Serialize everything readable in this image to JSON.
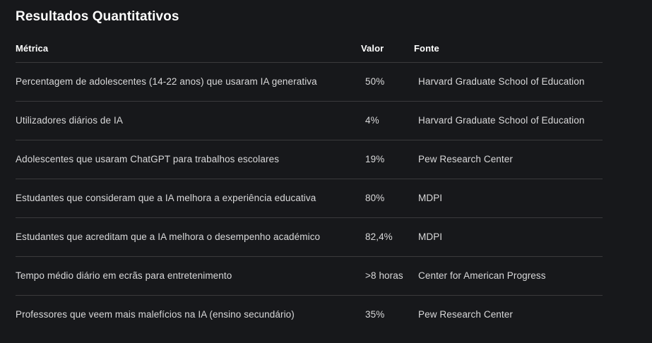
{
  "page": {
    "title": "Resultados Quantitativos"
  },
  "table": {
    "columns": [
      {
        "label": "Métrica"
      },
      {
        "label": "Valor"
      },
      {
        "label": "Fonte"
      }
    ],
    "rows": [
      {
        "metric": "Percentagem de adolescentes (14-22 anos) que usaram IA generativa",
        "value": "50%",
        "source": "Harvard Graduate School of Education"
      },
      {
        "metric": "Utilizadores diários de IA",
        "value": "4%",
        "source": "Harvard Graduate School of Education"
      },
      {
        "metric": "Adolescentes que usaram ChatGPT para trabalhos escolares",
        "value": "19%",
        "source": "Pew Research Center"
      },
      {
        "metric": "Estudantes que consideram que a IA melhora a experiência educativa",
        "value": "80%",
        "source": "MDPI"
      },
      {
        "metric": "Estudantes que acreditam que a IA melhora o desempenho académico",
        "value": "82,4%",
        "source": "MDPI"
      },
      {
        "metric": "Tempo médio diário em ecrãs para entretenimento",
        "value": ">8 horas",
        "source": "Center for American Progress"
      },
      {
        "metric": "Professores que veem mais malefícios na IA (ensino secundário)",
        "value": "35%",
        "source": "Pew Research Center"
      }
    ]
  },
  "colors": {
    "background": "#17181b",
    "divider": "#3a3a3c",
    "heading_text": "#ffffff",
    "body_text": "#d9d9da"
  }
}
